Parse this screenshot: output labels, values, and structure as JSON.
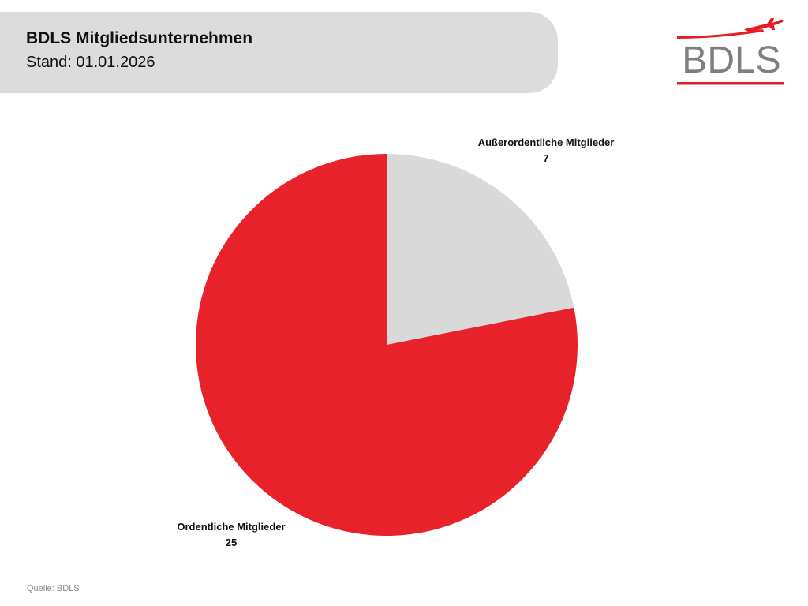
{
  "header": {
    "title": "BDLS Mitgliedsunternehmen",
    "subtitle": "Stand: 01.01.2026"
  },
  "logo": {
    "text": "BDLS",
    "icon": "airplane-icon",
    "accent_color": "#e31e24",
    "text_color": "#7f7f7f"
  },
  "chart_data": {
    "type": "pie",
    "title": "BDLS Mitgliedsunternehmen",
    "subtitle": "Stand: 01.01.2026",
    "start_angle": "12 o'clock",
    "direction": "clockwise",
    "slices": [
      {
        "label": "Außerordentliche Mitglieder",
        "value": 7,
        "color": "#d9d9d9"
      },
      {
        "label": "Ordentliche Mitglieder",
        "value": 25,
        "color": "#e8222a"
      }
    ],
    "legend": "none"
  },
  "footer": {
    "source": "Quelle: BDLS"
  }
}
